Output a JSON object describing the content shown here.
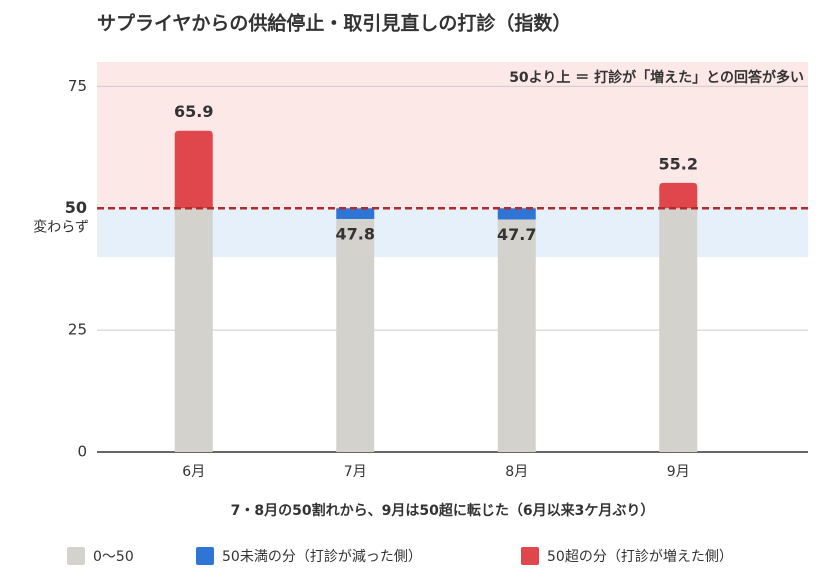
{
  "chart_data": {
    "type": "bar",
    "title": "サプライヤからの供給停止・取引見直しの打診（指数）",
    "categories": [
      "6月",
      "7月",
      "8月",
      "9月"
    ],
    "values": [
      65.9,
      47.8,
      47.7,
      55.2
    ],
    "ylim": [
      0,
      80
    ],
    "yticks": [
      0,
      25,
      50,
      75
    ],
    "grid": true,
    "reference": {
      "value": 50,
      "sublabel": "変わらず",
      "color": "#b22a2a"
    },
    "neutral_band": [
      40,
      50
    ],
    "annotation": "50より上 ＝ 打診が「増えた」との回答が多い",
    "caption": "7・8月の50割れから、9月は50超に転じた（6月以来3ケ月ぶり）",
    "series": [
      {
        "name": "0〜50",
        "color": "#d3d2cd"
      },
      {
        "name": "50未満の分（打診が減った側）",
        "color": "#2e75d6"
      },
      {
        "name": "50超の分（打診が増えた側）",
        "color": "#e0474c"
      }
    ],
    "legend": "bottom"
  }
}
